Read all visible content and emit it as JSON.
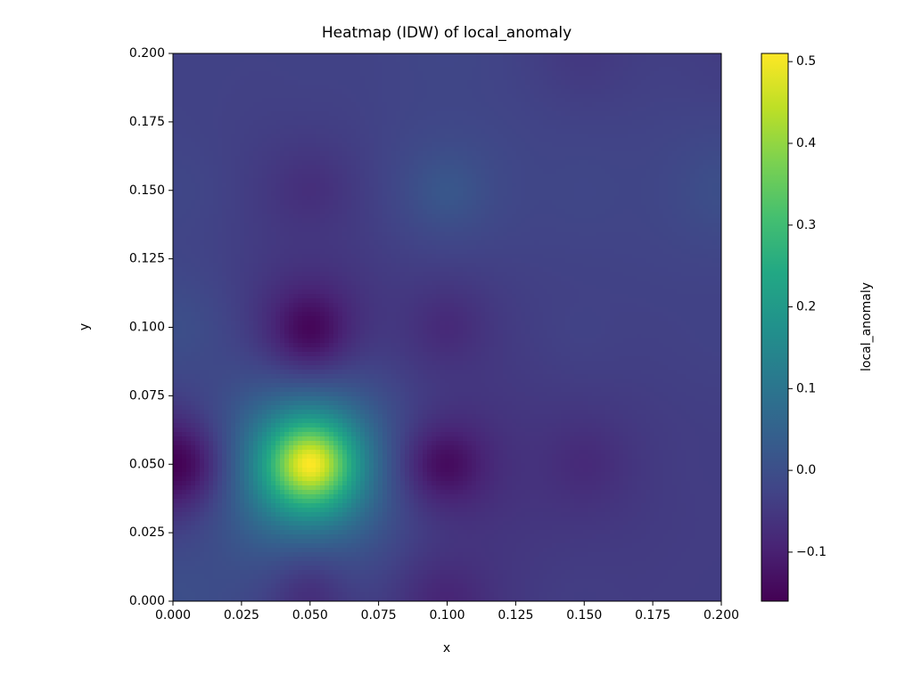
{
  "chart_data": {
    "type": "heatmap",
    "title": "Heatmap (IDW) of local_anomaly",
    "x_label": "x",
    "y_label": "y",
    "colorbar_label": "local_anomaly",
    "x": [
      0,
      0.05,
      0.1,
      0.15,
      0.2
    ],
    "y": [
      0,
      0.05,
      0.1,
      0.15,
      0.2
    ],
    "z": [
      [
        0.0,
        -0.07,
        -0.09,
        -0.04,
        -0.04
      ],
      [
        -0.16,
        0.51,
        -0.14,
        -0.08,
        -0.04
      ],
      [
        0.0,
        -0.15,
        -0.08,
        -0.03,
        -0.03
      ],
      [
        -0.02,
        -0.07,
        0.02,
        -0.02,
        0.0
      ],
      [
        -0.03,
        -0.03,
        -0.02,
        -0.05,
        -0.04
      ]
    ],
    "xlim": [
      0,
      0.2
    ],
    "ylim": [
      0,
      0.2
    ],
    "xticks": [
      {
        "value": 0,
        "label": "0.000"
      },
      {
        "value": 0.025,
        "label": "0.025"
      },
      {
        "value": 0.05,
        "label": "0.050"
      },
      {
        "value": 0.075,
        "label": "0.075"
      },
      {
        "value": 0.1,
        "label": "0.100"
      },
      {
        "value": 0.125,
        "label": "0.125"
      },
      {
        "value": 0.15,
        "label": "0.150"
      },
      {
        "value": 0.175,
        "label": "0.175"
      },
      {
        "value": 0.2,
        "label": "0.200"
      }
    ],
    "yticks": [
      {
        "value": 0,
        "label": "0.000"
      },
      {
        "value": 0.025,
        "label": "0.025"
      },
      {
        "value": 0.05,
        "label": "0.050"
      },
      {
        "value": 0.075,
        "label": "0.075"
      },
      {
        "value": 0.1,
        "label": "0.100"
      },
      {
        "value": 0.125,
        "label": "0.125"
      },
      {
        "value": 0.15,
        "label": "0.150"
      },
      {
        "value": 0.175,
        "label": "0.175"
      },
      {
        "value": 0.2,
        "label": "0.200"
      }
    ],
    "clim": [
      -0.16,
      0.51
    ],
    "cticks": [
      {
        "value": -0.1,
        "label": "−0.1"
      },
      {
        "value": 0,
        "label": "0.0"
      },
      0.1,
      0.2,
      0.3,
      0.4,
      0.5
    ],
    "colormap": "viridis"
  }
}
